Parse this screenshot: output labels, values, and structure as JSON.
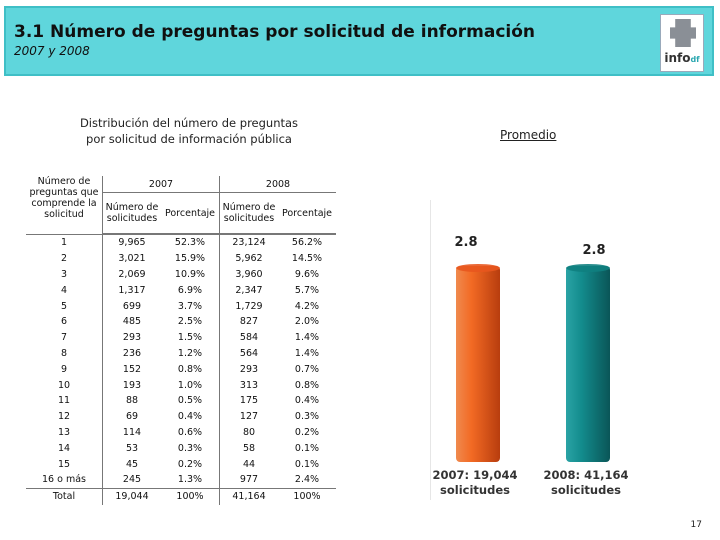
{
  "header": {
    "title": "3.1 Número de preguntas por solicitud de información",
    "subtitle": "2007 y 2008",
    "logo_text": "info",
    "logo_suffix": "df",
    "logo_icon": "df-map-icon"
  },
  "table": {
    "title_line1": "Distribución del número de preguntas",
    "title_line2": "por solicitud de información pública",
    "col_label_line1": "Número de",
    "col_label_line2": "preguntas que",
    "col_label_line3": "comprende la",
    "col_label_line4": "solicitud",
    "year1": "2007",
    "year2": "2008",
    "sub_num_line1": "Número de",
    "sub_num_line2": "solicitudes",
    "sub_pct": "Porcentaje",
    "rows": [
      {
        "label": "1",
        "n2007": "9,965",
        "p2007": "52.3%",
        "n2008": "23,124",
        "p2008": "56.2%"
      },
      {
        "label": "2",
        "n2007": "3,021",
        "p2007": "15.9%",
        "n2008": "5,962",
        "p2008": "14.5%"
      },
      {
        "label": "3",
        "n2007": "2,069",
        "p2007": "10.9%",
        "n2008": "3,960",
        "p2008": "9.6%"
      },
      {
        "label": "4",
        "n2007": "1,317",
        "p2007": "6.9%",
        "n2008": "2,347",
        "p2008": "5.7%"
      },
      {
        "label": "5",
        "n2007": "699",
        "p2007": "3.7%",
        "n2008": "1,729",
        "p2008": "4.2%"
      },
      {
        "label": "6",
        "n2007": "485",
        "p2007": "2.5%",
        "n2008": "827",
        "p2008": "2.0%"
      },
      {
        "label": "7",
        "n2007": "293",
        "p2007": "1.5%",
        "n2008": "584",
        "p2008": "1.4%"
      },
      {
        "label": "8",
        "n2007": "236",
        "p2007": "1.2%",
        "n2008": "564",
        "p2008": "1.4%"
      },
      {
        "label": "9",
        "n2007": "152",
        "p2007": "0.8%",
        "n2008": "293",
        "p2008": "0.7%"
      },
      {
        "label": "10",
        "n2007": "193",
        "p2007": "1.0%",
        "n2008": "313",
        "p2008": "0.8%"
      },
      {
        "label": "11",
        "n2007": "88",
        "p2007": "0.5%",
        "n2008": "175",
        "p2008": "0.4%"
      },
      {
        "label": "12",
        "n2007": "69",
        "p2007": "0.4%",
        "n2008": "127",
        "p2008": "0.3%"
      },
      {
        "label": "13",
        "n2007": "114",
        "p2007": "0.6%",
        "n2008": "80",
        "p2008": "0.2%"
      },
      {
        "label": "14",
        "n2007": "53",
        "p2007": "0.3%",
        "n2008": "58",
        "p2008": "0.1%"
      },
      {
        "label": "15",
        "n2007": "45",
        "p2007": "0.2%",
        "n2008": "44",
        "p2008": "0.1%"
      },
      {
        "label": "16 o más",
        "n2007": "245",
        "p2007": "1.3%",
        "n2008": "977",
        "p2008": "2.4%"
      }
    ],
    "total": {
      "label": "Total",
      "n2007": "19,044",
      "p2007": "100%",
      "n2008": "41,164",
      "p2008": "100%"
    }
  },
  "chart_data": {
    "type": "bar",
    "title": "Promedio",
    "categories": [
      "2007",
      "2008"
    ],
    "values": [
      2.8,
      2.8
    ],
    "value_labels": [
      "2.8",
      "2.8"
    ],
    "category_labels": [
      {
        "line1": "2007: 19,044",
        "line2": "solicitudes"
      },
      {
        "line1": "2008: 41,164",
        "line2": "solicitudes"
      }
    ],
    "colors": [
      "#e8561e",
      "#0f7f80"
    ],
    "ylim": [
      0,
      3.2
    ],
    "grid": false,
    "legend": "none"
  },
  "footer": {
    "page_number": "17"
  }
}
